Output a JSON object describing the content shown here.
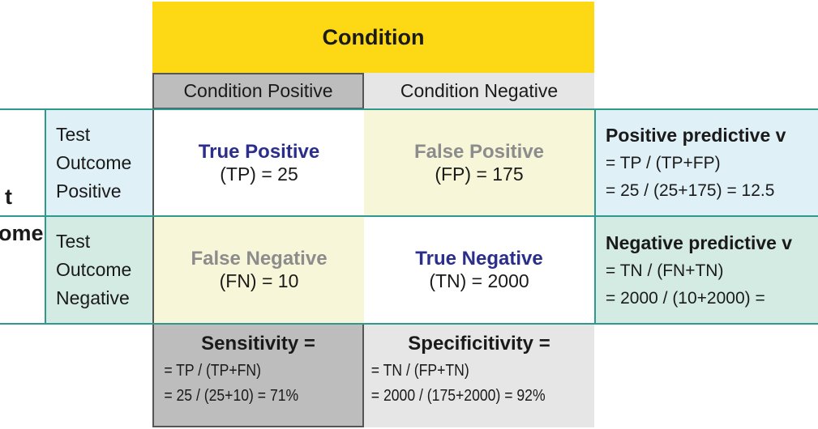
{
  "header": {
    "title": "Condition",
    "columns": [
      "Condition Positive",
      "Condition Negative"
    ]
  },
  "row_header": {
    "lines": [
      "t",
      "ome"
    ]
  },
  "rows": [
    {
      "label": [
        "Test",
        "Outcome",
        "Positive"
      ],
      "cells": [
        {
          "title": "True Positive",
          "value": "(TP) = 25"
        },
        {
          "title": "False Positive",
          "value": "(FP) = 175"
        }
      ],
      "predictive": {
        "title": "Positive predictive v",
        "lines": [
          "= TP / (TP+FP)",
          "= 25 / (25+175) = 12.5"
        ]
      }
    },
    {
      "label": [
        "Test",
        "Outcome",
        "Negative"
      ],
      "cells": [
        {
          "title": "False Negative",
          "value": "(FN) = 10"
        },
        {
          "title": "True Negative",
          "value": "(TN) = 2000"
        }
      ],
      "predictive": {
        "title": "Negative predictive v",
        "lines": [
          "= TN / (FN+TN)",
          "= 2000 / (10+2000) ="
        ]
      }
    }
  ],
  "footer": [
    {
      "title": "Sensitivity =",
      "lines": [
        "= TP / (TP+FN)",
        "= 25 / (25+10) = 71%"
      ]
    },
    {
      "title": "Specificitivity =",
      "lines": [
        "= TN / (FP+TN)",
        "= 2000 / (175+2000) = 92%"
      ]
    }
  ]
}
